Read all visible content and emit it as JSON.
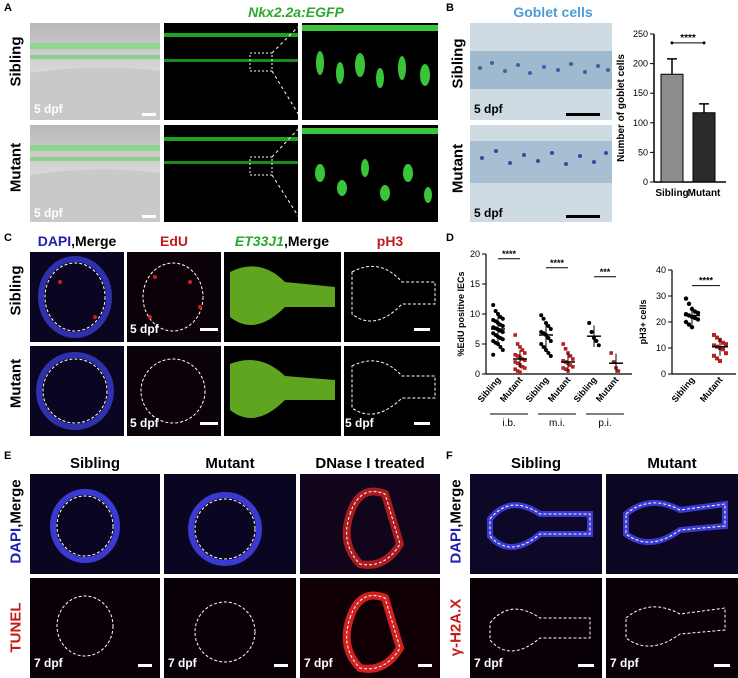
{
  "panels": {
    "A": {
      "label": "A",
      "title": "Nkx2.2a:EGFP",
      "rows": [
        "Sibling",
        "Mutant"
      ],
      "age": "5 dpf"
    },
    "B": {
      "label": "B",
      "title": "Goblet cells",
      "rows": [
        "Sibling",
        "Mutant"
      ],
      "age": "5 dpf"
    },
    "C": {
      "label": "C",
      "col1_a": "DAPI",
      "col1_b": ",Merge",
      "col2": "EdU",
      "col3_a": "ET33J1",
      "col3_b": ",Merge",
      "col4": "pH3",
      "rows": [
        "Sibling",
        "Mutant"
      ],
      "age": "5 dpf"
    },
    "D": {
      "label": "D"
    },
    "E": {
      "label": "E",
      "cols": [
        "Sibling",
        "Mutant",
        "DNase I treated"
      ],
      "row1_a": "DAPI",
      "row1_b": ",Merge",
      "row2": "TUNEL",
      "age": "7 dpf"
    },
    "F": {
      "label": "F",
      "cols": [
        "Sibling",
        "Mutant"
      ],
      "row1_a": "DAPI",
      "row1_b": ",Merge",
      "row2": "γ-H2A.X",
      "age": "7 dpf"
    }
  },
  "chart_data": [
    {
      "id": "B",
      "type": "bar",
      "categories": [
        "Sibling",
        "Mutant"
      ],
      "values": [
        182,
        117
      ],
      "errors": [
        26,
        15
      ],
      "ylabel": "Number of goblet cells",
      "ylim": [
        0,
        250
      ],
      "yticks": [
        0,
        50,
        100,
        150,
        200,
        250
      ],
      "significance": "****",
      "colors": [
        "#8c8c8c",
        "#2b2b2b"
      ]
    },
    {
      "id": "D-left",
      "type": "scatter",
      "ylabel": "%EdU positive IECs",
      "ylim": [
        0,
        20
      ],
      "yticks": [
        0,
        5,
        10,
        15,
        20
      ],
      "groups": [
        {
          "region": "i.b.",
          "categories": [
            "Sibling",
            "Mutant"
          ],
          "means": [
            7.5,
            2.5
          ],
          "sd": [
            2.5,
            1.5
          ],
          "significance": "****",
          "points": [
            [
              11.5,
              10.5,
              10,
              9.5,
              9.2,
              9,
              8.8,
              8.5,
              8.2,
              8,
              7.8,
              7.6,
              7.4,
              7.2,
              7,
              6.8,
              6.5,
              6.2,
              6,
              5.8,
              5.5,
              5.2,
              5,
              4.5,
              4,
              3.2
            ],
            [
              6.5,
              5,
              4.5,
              4,
              3.5,
              3.2,
              3,
              2.8,
              2.5,
              2.3,
              2,
              1.8,
              1.5,
              1.2,
              1,
              0.8,
              0.5,
              0.3
            ]
          ]
        },
        {
          "region": "m.i.",
          "categories": [
            "Sibling",
            "Mutant"
          ],
          "means": [
            6.5,
            2.0
          ],
          "sd": [
            2.3,
            1.5
          ],
          "significance": "****",
          "points": [
            [
              9.8,
              9.2,
              8.5,
              8,
              7.5,
              7,
              6.8,
              6.5,
              6,
              5.5,
              5,
              4.5,
              4,
              3.5,
              3
            ],
            [
              5,
              4.2,
              3.5,
              3,
              2.5,
              2.2,
              2,
              1.8,
              1.5,
              1.2,
              1,
              0.8,
              0.5
            ]
          ]
        },
        {
          "region": "p.i.",
          "categories": [
            "Sibling",
            "Mutant"
          ],
          "means": [
            6.3,
            1.8
          ],
          "sd": [
            1.8,
            1.6
          ],
          "significance": "***",
          "points": [
            [
              8.5,
              7,
              6,
              5.5,
              4.8
            ],
            [
              3.5,
              2,
              1,
              0.5
            ]
          ]
        }
      ],
      "colors": [
        "#000000",
        "#b22222"
      ]
    },
    {
      "id": "D-right",
      "type": "scatter",
      "ylabel": "pH3+ cells",
      "ylim": [
        0,
        40
      ],
      "yticks": [
        0,
        10,
        20,
        30,
        40
      ],
      "categories": [
        "Sibling",
        "Mutant"
      ],
      "means": [
        22.5,
        10.5
      ],
      "sd": [
        3.5,
        3.5
      ],
      "significance": "****",
      "points": [
        [
          29,
          27,
          25,
          24,
          23.5,
          23,
          22.5,
          22,
          21.5,
          21,
          20,
          19,
          18
        ],
        [
          15,
          14,
          13,
          12,
          11.5,
          11,
          10.5,
          10,
          9.5,
          8,
          7,
          6,
          5
        ]
      ],
      "colors": [
        "#000000",
        "#b22222"
      ]
    }
  ]
}
